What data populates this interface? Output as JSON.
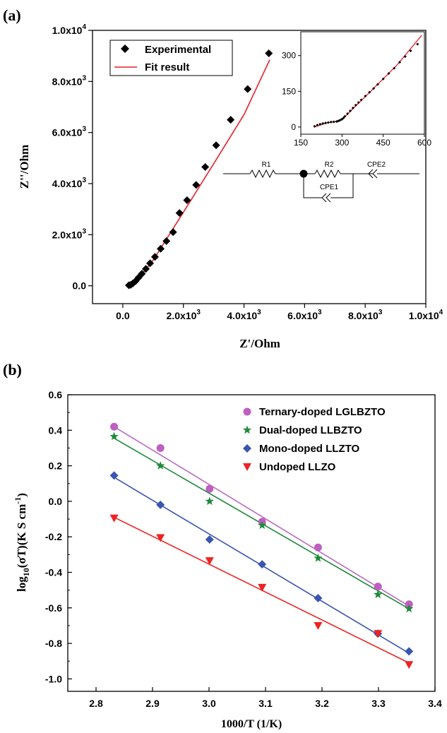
{
  "chart_data": [
    {
      "type": "scatter",
      "panel_label": "(a)",
      "xlabel": "Z'/Ohm",
      "ylabel": "Z''/Ohm",
      "xlim": [
        -1000,
        10000
      ],
      "ylim": [
        -700,
        10000
      ],
      "x_ticks": [
        "0.0",
        "2.0x10^3",
        "4.0x10^3",
        "6.0x10^3",
        "8.0x10^3",
        "1.0x10^4"
      ],
      "y_ticks": [
        "0.0",
        "2.0x10^3",
        "4.0x10^3",
        "6.0x10^3",
        "8.0x10^3",
        "1.0x10^4"
      ],
      "legend_position": "top-left",
      "series": [
        {
          "name": "Experimental",
          "marker": "diamond",
          "color": "#000000",
          "x": [
            200,
            260,
            330,
            420,
            520,
            630,
            760,
            900,
            1060,
            1250,
            1440,
            1660,
            1870,
            2120,
            2420,
            2720,
            3080,
            3560,
            4120,
            4820
          ],
          "y": [
            20,
            35,
            90,
            180,
            320,
            470,
            660,
            880,
            1130,
            1450,
            1750,
            2100,
            2850,
            3350,
            3950,
            4650,
            5500,
            6500,
            7700,
            9100
          ]
        },
        {
          "name": "Fit result",
          "marker": "line",
          "color": "#e8212a",
          "x": [
            200,
            300,
            500,
            1000,
            2000,
            3000,
            4000,
            4850
          ],
          "y": [
            0,
            30,
            260,
            1000,
            2880,
            4780,
            6700,
            8850
          ]
        }
      ],
      "inset": {
        "xlim": [
          150,
          600
        ],
        "ylim": [
          -30,
          400
        ],
        "x_ticks": [
          "150",
          "300",
          "450",
          "600"
        ],
        "y_ticks": [
          "0",
          "150",
          "300"
        ],
        "points_x": [
          200,
          210,
          220,
          230,
          240,
          250,
          260,
          270,
          280,
          285,
          290,
          295,
          300,
          305,
          310,
          320,
          330,
          340,
          350,
          360,
          370,
          385,
          400,
          415,
          430,
          450,
          470,
          490,
          510,
          530,
          550,
          575
        ],
        "points_y": [
          3,
          8,
          12,
          15,
          17,
          19,
          21,
          22,
          23,
          25,
          27,
          30,
          33,
          38,
          45,
          56,
          68,
          80,
          92,
          103,
          114,
          130,
          146,
          162,
          179,
          202,
          225,
          247,
          272,
          296,
          320,
          348
        ],
        "fit_x": [
          200,
          240,
          270,
          290,
          300,
          310,
          330,
          400,
          500,
          590
        ],
        "fit_y": [
          0,
          16,
          22,
          27,
          32,
          42,
          66,
          145,
          260,
          385
        ]
      },
      "circuit_labels": [
        "R1",
        "R2",
        "CPE1",
        "CPE2"
      ]
    },
    {
      "type": "scatter",
      "panel_label": "(b)",
      "xlabel": "1000/T (1/K)",
      "ylabel": "log10(σT)(K S cm-1)",
      "xlim": [
        2.75,
        3.4
      ],
      "ylim": [
        -1.07,
        0.6
      ],
      "x_ticks": [
        "2.8",
        "2.9",
        "3.0",
        "3.1",
        "3.2",
        "3.3",
        "3.4"
      ],
      "y_ticks": [
        "-1.0",
        "-0.8",
        "-0.6",
        "-0.4",
        "-0.2",
        "0.0",
        "0.2",
        "0.4",
        "0.6"
      ],
      "legend_position": "top-right",
      "x": [
        2.832,
        2.914,
        3.001,
        3.094,
        3.193,
        3.299,
        3.354
      ],
      "series": [
        {
          "name": "Ternary-doped LGLBZTO",
          "marker": "circle",
          "color": "#bf5fbf",
          "line_color": "#b86cc4",
          "values": [
            0.42,
            0.3,
            0.07,
            -0.115,
            -0.26,
            -0.48,
            -0.58
          ],
          "fit": [
            0.42,
            -0.59
          ]
        },
        {
          "name": "Dual-doped LLBZTO",
          "marker": "star",
          "color": "#1e8a3c",
          "line_color": "#1e8a3c",
          "values": [
            0.365,
            0.2,
            0.0,
            -0.135,
            -0.32,
            -0.525,
            -0.605
          ],
          "fit": [
            0.355,
            -0.605
          ]
        },
        {
          "name": "Mono-doped LLZTO",
          "marker": "diamond",
          "color": "#3a55b0",
          "line_color": "#3a55b0",
          "values": [
            0.145,
            -0.02,
            -0.215,
            -0.355,
            -0.545,
            -0.745,
            -0.845
          ],
          "fit": [
            0.135,
            -0.855
          ]
        },
        {
          "name": "Undoped LLZO",
          "marker": "triangle-down",
          "color": "#ee2222",
          "line_color": "#ee2222",
          "values": [
            -0.095,
            -0.205,
            -0.335,
            -0.485,
            -0.7,
            -0.745,
            -0.92
          ],
          "fit": [
            -0.09,
            -0.91
          ]
        }
      ]
    }
  ]
}
